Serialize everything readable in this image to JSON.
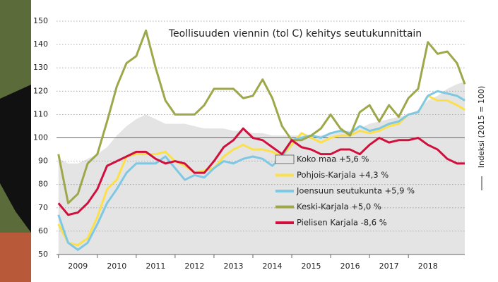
{
  "chart_data": {
    "type": "line",
    "title": "Teollisuuden viennin (tol C) kehitys seutukunnittain",
    "ylabel": "Indeksi (2015 = 100)",
    "x": [
      2009.0,
      2009.25,
      2009.5,
      2009.75,
      2010.0,
      2010.25,
      2010.5,
      2010.75,
      2011.0,
      2011.25,
      2011.5,
      2011.75,
      2012.0,
      2012.25,
      2012.5,
      2012.75,
      2013.0,
      2013.25,
      2013.5,
      2013.75,
      2014.0,
      2014.25,
      2014.5,
      2014.75,
      2015.0,
      2015.25,
      2015.5,
      2015.75,
      2016.0,
      2016.25,
      2016.5,
      2016.75,
      2017.0,
      2017.25,
      2017.5,
      2017.75,
      2018.0,
      2018.25,
      2018.5,
      2018.75,
      2019.0,
      2019.25,
      2019.45
    ],
    "xlim": [
      2008.95,
      2019.45
    ],
    "xticks": [
      2009,
      2010,
      2011,
      2012,
      2013,
      2014,
      2015,
      2016,
      2017,
      2018
    ],
    "ylim": [
      50,
      150
    ],
    "yticks": [
      50,
      60,
      70,
      80,
      90,
      100,
      110,
      120,
      130,
      140,
      150
    ],
    "reference_line": 100,
    "grid": true,
    "series": [
      {
        "name": "Koko maa +5,6 %",
        "color": "#e4e4e4",
        "area": true,
        "values": [
          91,
          89,
          89,
          91,
          93,
          96,
          101,
          105,
          108,
          110,
          108,
          106,
          106,
          106,
          105,
          104,
          104,
          104,
          103,
          103,
          102,
          102,
          101,
          101,
          101,
          101,
          101,
          101,
          102,
          103,
          103,
          104,
          106,
          107,
          108,
          109,
          110,
          112,
          116,
          118,
          121,
          123,
          124
        ]
      },
      {
        "name": "Pohjois-Karjala +4,3 %",
        "color": "#fbe04a",
        "values": [
          63,
          55,
          54,
          57,
          66,
          78,
          82,
          92,
          93,
          93,
          93,
          94,
          90,
          88,
          85,
          86,
          87,
          92,
          95,
          97,
          95,
          95,
          94,
          92,
          97,
          102,
          100,
          98,
          100,
          101,
          101,
          103,
          102,
          103,
          105,
          106,
          110,
          111,
          118,
          116,
          116,
          114,
          112
        ]
      },
      {
        "name": "Joensuun seutukunta +5,9 %",
        "color": "#7ec8e3",
        "values": [
          67,
          55,
          52,
          55,
          63,
          72,
          78,
          85,
          89,
          89,
          89,
          92,
          87,
          82,
          84,
          83,
          87,
          90,
          89,
          91,
          92,
          91,
          88,
          92,
          99,
          100,
          101,
          100,
          102,
          103,
          102,
          105,
          103,
          104,
          106,
          107,
          110,
          111,
          118,
          120,
          119,
          118,
          116
        ]
      },
      {
        "name": "Keski-Karjala +5,0 %",
        "color": "#9ea74a",
        "values": [
          93,
          72,
          76,
          89,
          93,
          107,
          122,
          132,
          135,
          146,
          130,
          116,
          110,
          110,
          110,
          114,
          121,
          121,
          121,
          117,
          118,
          125,
          117,
          105,
          99,
          99,
          101,
          104,
          110,
          104,
          101,
          111,
          114,
          107,
          114,
          109,
          117,
          121,
          141,
          136,
          137,
          132,
          123
        ]
      },
      {
        "name": "Pielisen Karjala -8,6 %",
        "color": "#d10f3c",
        "values": [
          72,
          67,
          68,
          72,
          78,
          88,
          90,
          92,
          94,
          94,
          91,
          89,
          90,
          89,
          85,
          85,
          90,
          96,
          99,
          104,
          100,
          99,
          96,
          93,
          99,
          96,
          95,
          93,
          93,
          95,
          95,
          93,
          97,
          100,
          98,
          99,
          99,
          100,
          97,
          95,
          91,
          89,
          89
        ]
      }
    ]
  }
}
